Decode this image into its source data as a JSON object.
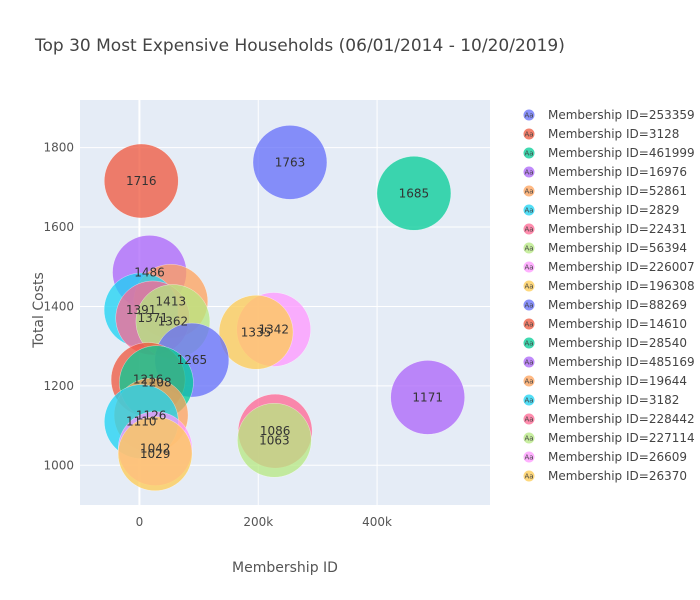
{
  "chart_data": {
    "type": "scatter",
    "title": "Top 30 Most Expensive Households (06/01/2014 - 10/20/2019)",
    "xlabel": "Membership ID",
    "ylabel": "Total Costs",
    "xlim": [
      -100000,
      590000
    ],
    "ylim": [
      900,
      1920
    ],
    "xticks": [
      0,
      200000,
      400000
    ],
    "xtick_labels": [
      "0",
      "200k",
      "400k"
    ],
    "yticks": [
      1000,
      1200,
      1400,
      1600,
      1800
    ],
    "ytick_labels": [
      "1000",
      "1200",
      "1400",
      "1600",
      "1800"
    ],
    "grid": true,
    "legend_position": "right",
    "legend_symbol": "Aa",
    "series": [
      {
        "name": "Membership ID=253359",
        "color": "#636efa",
        "points": [
          {
            "x": 253359,
            "y": 1763,
            "label": "1763"
          }
        ]
      },
      {
        "name": "Membership ID=3128",
        "color": "#ef553b",
        "points": [
          {
            "x": 3128,
            "y": 1716,
            "label": "1716"
          }
        ]
      },
      {
        "name": "Membership ID=461999",
        "color": "#00cc96",
        "points": [
          {
            "x": 461999,
            "y": 1685,
            "label": "1685"
          }
        ]
      },
      {
        "name": "Membership ID=16976",
        "color": "#ab63fa",
        "points": [
          {
            "x": 16976,
            "y": 1486,
            "label": "1486"
          }
        ]
      },
      {
        "name": "Membership ID=52861",
        "color": "#ffa15a",
        "points": [
          {
            "x": 52861,
            "y": 1413,
            "label": "1413"
          }
        ]
      },
      {
        "name": "Membership ID=2829",
        "color": "#19d3f3",
        "points": [
          {
            "x": 2829,
            "y": 1391,
            "label": "1391"
          }
        ]
      },
      {
        "name": "Membership ID=22431",
        "color": "#ff6692",
        "points": [
          {
            "x": 22431,
            "y": 1371,
            "label": "1371"
          }
        ]
      },
      {
        "name": "Membership ID=56394",
        "color": "#b6e880",
        "points": [
          {
            "x": 56394,
            "y": 1362,
            "label": "1362"
          }
        ]
      },
      {
        "name": "Membership ID=226007",
        "color": "#ff97ff",
        "points": [
          {
            "x": 226007,
            "y": 1342,
            "label": "1342"
          }
        ]
      },
      {
        "name": "Membership ID=196308",
        "color": "#fecb52",
        "points": [
          {
            "x": 196308,
            "y": 1335,
            "label": "1335"
          }
        ]
      },
      {
        "name": "Membership ID=88269",
        "color": "#636efa",
        "points": [
          {
            "x": 88269,
            "y": 1265,
            "label": "1265"
          }
        ]
      },
      {
        "name": "Membership ID=14610",
        "color": "#ef553b",
        "points": [
          {
            "x": 14610,
            "y": 1216,
            "label": "1216"
          }
        ]
      },
      {
        "name": "Membership ID=28540",
        "color": "#00cc96",
        "points": [
          {
            "x": 28540,
            "y": 1208,
            "label": "1208"
          }
        ]
      },
      {
        "name": "Membership ID=485169",
        "color": "#ab63fa",
        "points": [
          {
            "x": 485169,
            "y": 1171,
            "label": "1171"
          }
        ]
      },
      {
        "name": "Membership ID=19644",
        "color": "#ffa15a",
        "points": [
          {
            "x": 19644,
            "y": 1126,
            "label": "1126"
          }
        ]
      },
      {
        "name": "Membership ID=3182",
        "color": "#19d3f3",
        "points": [
          {
            "x": 3182,
            "y": 1110,
            "label": "1110"
          }
        ]
      },
      {
        "name": "Membership ID=228442",
        "color": "#ff6692",
        "points": [
          {
            "x": 228442,
            "y": 1086,
            "label": "1086"
          }
        ]
      },
      {
        "name": "Membership ID=227114",
        "color": "#b6e880",
        "points": [
          {
            "x": 227114,
            "y": 1063,
            "label": "1063"
          }
        ]
      },
      {
        "name": "Membership ID=26609",
        "color": "#ff97ff",
        "points": [
          {
            "x": 26609,
            "y": 1042,
            "label": "1042"
          }
        ]
      },
      {
        "name": "Membership ID=26370",
        "color": "#fecb52",
        "points": [
          {
            "x": 26370,
            "y": 1029,
            "label": "1029"
          }
        ]
      }
    ]
  }
}
